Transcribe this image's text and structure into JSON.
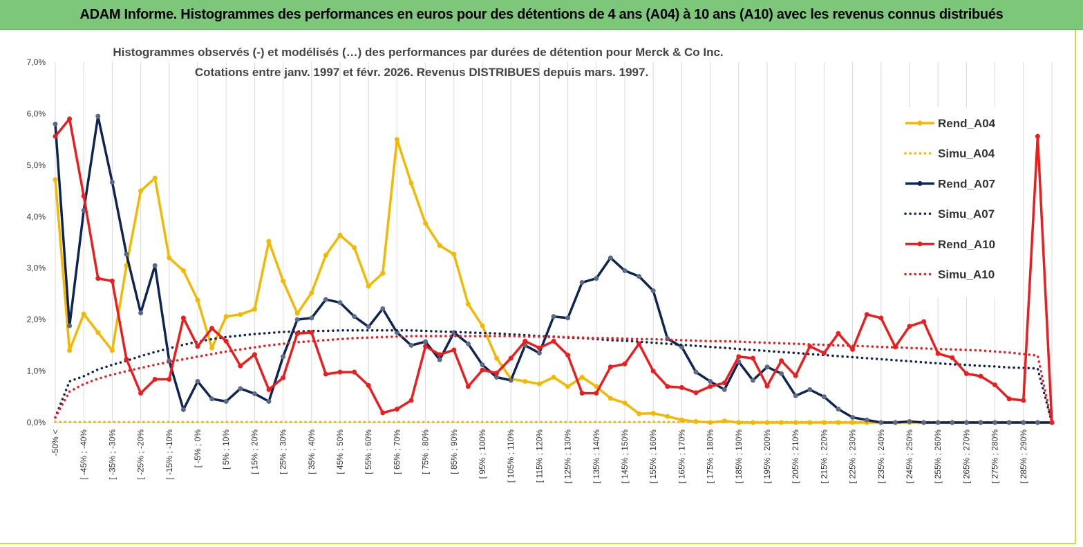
{
  "page": {
    "title": "ADAM Informe. Histogrammes des performances en euros pour des détentions de 4 ans (A04) à 10 ans (A10) avec les revenus connus distribués"
  },
  "chart_data": {
    "type": "line",
    "title_line1": "Histogrammes observés (-) et modélisés (…) des performances par durées de détention pour Merck & Co Inc.",
    "title_line2": "Cotations entre janv. 1997 et févr. 2026. Revenus DISTRIBUES depuis mars. 1997.",
    "ylim": [
      0,
      7
    ],
    "y_ticks": [
      "0,0%",
      "1,0%",
      "2,0%",
      "3,0%",
      "4,0%",
      "5,0%",
      "6,0%",
      "7,0%"
    ],
    "x_tick_labels": [
      "-50% <",
      "[ -45% ; -40%",
      "[ -35% ; -30%",
      "[ -25% ; -20%",
      "[ -15% ; -10%",
      "[ -5% ; 0%",
      "[ 5% ; 10%",
      "[ 15% ; 20%",
      "[ 25% ; 30%",
      "[ 35% ; 40%",
      "[ 45% ; 50%",
      "[ 55% ; 60%",
      "[ 65% ; 70%",
      "[ 75% ; 80%",
      "[ 85% ; 90%",
      "[ 95% ; 100%",
      "[ 105% ; 110%",
      "[ 115% ; 120%",
      "[ 125% ; 130%",
      "[ 135% ; 140%",
      "[ 145% ; 150%",
      "[ 155% ; 160%",
      "[ 165% ; 170%",
      "[ 175% ; 180%",
      "[ 185% ; 190%",
      "[ 195% ; 200%",
      "[ 205% ; 210%",
      "[ 215% ; 220%",
      "[ 225% ; 230%",
      "[ 235% ; 240%",
      "[ 245% ; 250%",
      "[ 255% ; 260%",
      "[ 265% ; 270%",
      "[ 275% ; 280%",
      "[ 285% ; 290%"
    ],
    "series": [
      {
        "name": "Rend_A04",
        "style": "solid",
        "color": "#f5b800",
        "values": [
          4.72,
          1.4,
          2.11,
          1.75,
          1.4,
          3.05,
          4.5,
          4.75,
          3.2,
          2.95,
          2.38,
          1.45,
          2.06,
          2.1,
          2.2,
          3.52,
          2.75,
          2.12,
          2.52,
          3.25,
          3.64,
          3.4,
          2.65,
          2.9,
          5.5,
          4.65,
          3.87,
          3.44,
          3.27,
          2.3,
          1.88,
          1.25,
          0.85,
          0.8,
          0.75,
          0.88,
          0.7,
          0.88,
          0.7,
          0.47,
          0.38,
          0.17,
          0.18,
          0.12,
          0.05,
          0.02,
          0.0,
          0.03,
          0.0,
          0.0,
          0.0,
          0.0,
          0.0,
          0.0,
          0.0,
          0.0,
          0.0,
          0.0,
          0.0,
          0.0,
          0.0,
          0.0,
          0.0,
          0.0,
          0.0,
          0.0,
          0.0,
          0.0,
          0.0,
          0.0,
          0.0
        ]
      },
      {
        "name": "Simu_A04",
        "style": "dotted",
        "color": "#f5b800",
        "values": [
          0.01,
          0.01,
          0.01,
          0.01,
          0.01,
          0.01,
          0.01,
          0.01,
          0.01,
          0.01,
          0.01,
          0.01,
          0.01,
          0.01,
          0.01,
          0.01,
          0.01,
          0.01,
          0.01,
          0.01,
          0.01,
          0.01,
          0.01,
          0.01,
          0.01,
          0.01,
          0.01,
          0.01,
          0.01,
          0.01,
          0.01,
          0.01,
          0.01,
          0.01,
          0.01,
          0.01,
          0.01,
          0.01,
          0.01,
          0.01,
          0.01,
          0.01,
          0.01,
          0.01,
          0.01,
          0.01,
          0.01,
          0.01,
          0.01,
          0.01,
          0.01,
          0.01,
          0.01,
          0.01,
          0.01,
          0.01,
          0.01,
          0.01,
          0.01,
          0.01,
          0.01,
          0.01,
          0.01,
          0.01,
          0.01,
          0.01,
          0.01,
          0.01,
          0.01,
          0.01,
          0.0
        ]
      },
      {
        "name": "Rend_A07",
        "style": "solid",
        "color": "#0d2455",
        "values": [
          5.8,
          1.88,
          4.12,
          5.95,
          4.67,
          3.27,
          2.13,
          3.05,
          1.2,
          0.25,
          0.8,
          0.46,
          0.41,
          0.66,
          0.56,
          0.41,
          1.28,
          2.0,
          2.03,
          2.39,
          2.33,
          2.06,
          1.86,
          2.21,
          1.75,
          1.5,
          1.57,
          1.22,
          1.75,
          1.53,
          1.12,
          0.88,
          0.82,
          1.5,
          1.35,
          2.06,
          2.03,
          2.72,
          2.8,
          3.2,
          2.95,
          2.84,
          2.56,
          1.63,
          1.47,
          0.98,
          0.8,
          0.64,
          1.18,
          0.82,
          1.08,
          0.95,
          0.52,
          0.64,
          0.5,
          0.26,
          0.1,
          0.05,
          0.0,
          0.0,
          0.02,
          0.0,
          0.0,
          0.0,
          0.0,
          0.0,
          0.0,
          0.0,
          0.0,
          0.0,
          0.0
        ]
      },
      {
        "name": "Simu_A07",
        "style": "dotted",
        "color": "#0d2455",
        "values": [
          0.1,
          0.8,
          0.9,
          1.03,
          1.12,
          1.2,
          1.29,
          1.37,
          1.44,
          1.51,
          1.57,
          1.62,
          1.66,
          1.69,
          1.72,
          1.74,
          1.76,
          1.77,
          1.78,
          1.78,
          1.79,
          1.79,
          1.79,
          1.79,
          1.79,
          1.79,
          1.78,
          1.77,
          1.76,
          1.75,
          1.74,
          1.73,
          1.71,
          1.7,
          1.68,
          1.67,
          1.65,
          1.64,
          1.62,
          1.6,
          1.59,
          1.57,
          1.55,
          1.53,
          1.51,
          1.49,
          1.47,
          1.45,
          1.43,
          1.41,
          1.39,
          1.37,
          1.35,
          1.33,
          1.31,
          1.29,
          1.27,
          1.25,
          1.23,
          1.21,
          1.19,
          1.17,
          1.15,
          1.13,
          1.12,
          1.1,
          1.09,
          1.07,
          1.06,
          1.05,
          0.0
        ]
      },
      {
        "name": "Rend_A10",
        "style": "solid",
        "color": "#ee1c1c",
        "values": [
          5.56,
          5.9,
          4.4,
          2.8,
          2.75,
          1.23,
          0.57,
          0.84,
          0.84,
          2.03,
          1.48,
          1.83,
          1.58,
          1.1,
          1.32,
          0.64,
          0.87,
          1.73,
          1.75,
          0.94,
          0.98,
          0.98,
          0.72,
          0.19,
          0.26,
          0.43,
          1.48,
          1.32,
          1.41,
          0.7,
          1.02,
          0.96,
          1.25,
          1.58,
          1.45,
          1.58,
          1.31,
          0.57,
          0.57,
          1.08,
          1.14,
          1.53,
          1.0,
          0.7,
          0.68,
          0.58,
          0.7,
          0.77,
          1.28,
          1.25,
          0.71,
          1.2,
          0.91,
          1.48,
          1.35,
          1.73,
          1.42,
          2.1,
          2.03,
          1.47,
          1.87,
          1.96,
          1.34,
          1.26,
          0.95,
          0.9,
          0.73,
          0.46,
          0.43,
          5.56,
          0.0
        ]
      },
      {
        "name": "Simu_A10",
        "style": "dotted",
        "color": "#ee1c1c",
        "values": [
          0.1,
          0.6,
          0.75,
          0.85,
          0.93,
          1.0,
          1.06,
          1.12,
          1.18,
          1.23,
          1.28,
          1.33,
          1.38,
          1.42,
          1.46,
          1.5,
          1.53,
          1.56,
          1.58,
          1.6,
          1.62,
          1.64,
          1.65,
          1.66,
          1.67,
          1.68,
          1.68,
          1.68,
          1.68,
          1.68,
          1.68,
          1.68,
          1.68,
          1.67,
          1.67,
          1.66,
          1.66,
          1.65,
          1.64,
          1.64,
          1.63,
          1.62,
          1.62,
          1.61,
          1.6,
          1.59,
          1.58,
          1.58,
          1.57,
          1.56,
          1.55,
          1.54,
          1.53,
          1.52,
          1.51,
          1.5,
          1.49,
          1.48,
          1.47,
          1.46,
          1.45,
          1.44,
          1.43,
          1.42,
          1.41,
          1.4,
          1.38,
          1.36,
          1.33,
          1.3,
          0.0
        ]
      }
    ],
    "legend": [
      "Rend_A04",
      "Simu_A04",
      "Rend_A07",
      "Simu_A07",
      "Rend_A10",
      "Simu_A10"
    ],
    "grid": "vertical",
    "legend_position": "right"
  }
}
